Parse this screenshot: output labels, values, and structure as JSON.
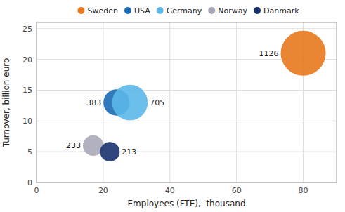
{
  "chart_data": {
    "type": "bubble",
    "xlabel": "Employees (FTE),  thousand",
    "ylabel": "Turnover, billion euro",
    "xlim": [
      0,
      90
    ],
    "ylim": [
      0,
      26
    ],
    "xticks": [
      0,
      20,
      40,
      60,
      80
    ],
    "yticks": [
      0,
      5,
      10,
      15,
      20,
      25
    ],
    "grid": true,
    "legend": "top",
    "data_labels": true,
    "series": [
      {
        "name": "Sweden",
        "color": "#E8781E",
        "x": [
          80
        ],
        "values": [
          21
        ],
        "sizes": [
          1126
        ]
      },
      {
        "name": "USA",
        "color": "#1A6BB5",
        "x": [
          24
        ],
        "values": [
          13
        ],
        "sizes": [
          383
        ]
      },
      {
        "name": "Germany",
        "color": "#5BB8E8",
        "x": [
          28
        ],
        "values": [
          13
        ],
        "sizes": [
          705
        ]
      },
      {
        "name": "Norway",
        "color": "#A8A8B8",
        "x": [
          17
        ],
        "values": [
          6
        ],
        "sizes": [
          233
        ]
      },
      {
        "name": "Danmark",
        "color": "#1A3370",
        "x": [
          22
        ],
        "values": [
          5
        ],
        "sizes": [
          213
        ]
      }
    ]
  }
}
